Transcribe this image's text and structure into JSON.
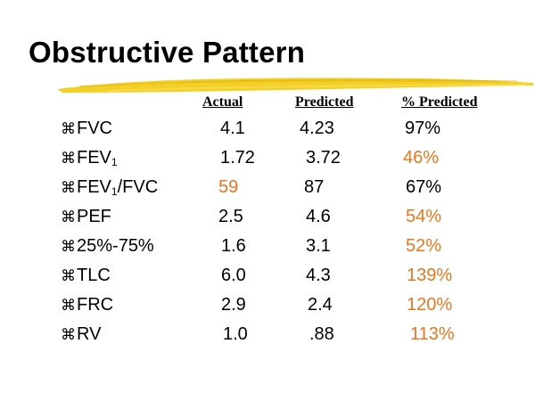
{
  "slide": {
    "title": "Obstructive Pattern",
    "accent_color": "#f2cd1c",
    "highlight_color": "#e8761f",
    "bullet_icon": "command-key-icon",
    "bullet_glyph": "⌘"
  },
  "table": {
    "headers": {
      "actual": "Actual",
      "predicted": "Predicted",
      "percent_predicted": "% Predicted"
    },
    "rows": [
      {
        "label_main": "FVC",
        "label_sub": "",
        "label_tail": "",
        "actual": "4.1",
        "predicted": "4.23",
        "percent": "97%",
        "actual_highlight": false,
        "percent_highlight": false
      },
      {
        "label_main": "FEV",
        "label_sub": "1",
        "label_tail": "",
        "actual": "1.72",
        "predicted": "3.72",
        "percent": "46%",
        "actual_highlight": false,
        "percent_highlight": true
      },
      {
        "label_main": "FEV",
        "label_sub": "1",
        "label_tail": "/FVC",
        "actual": "59",
        "predicted": "87",
        "percent": "67%",
        "actual_highlight": true,
        "percent_highlight": false
      },
      {
        "label_main": "PEF",
        "label_sub": "",
        "label_tail": "",
        "actual": "2.5",
        "predicted": "4.6",
        "percent": "54%",
        "actual_highlight": false,
        "percent_highlight": true
      },
      {
        "label_main": "25%-75%",
        "label_sub": "",
        "label_tail": "",
        "actual": "1.6",
        "predicted": "3.1",
        "percent": "52%",
        "actual_highlight": false,
        "percent_highlight": true
      },
      {
        "label_main": "TLC",
        "label_sub": "",
        "label_tail": "",
        "actual": "6.0",
        "predicted": "4.3",
        "percent": "139%",
        "actual_highlight": false,
        "percent_highlight": true
      },
      {
        "label_main": "FRC",
        "label_sub": "",
        "label_tail": "",
        "actual": "2.9",
        "predicted": "2.4",
        "percent": "120%",
        "actual_highlight": false,
        "percent_highlight": true
      },
      {
        "label_main": "RV",
        "label_sub": "",
        "label_tail": "",
        "actual": "1.0",
        "predicted": ".88",
        "percent": "113%",
        "actual_highlight": false,
        "percent_highlight": true
      }
    ]
  }
}
